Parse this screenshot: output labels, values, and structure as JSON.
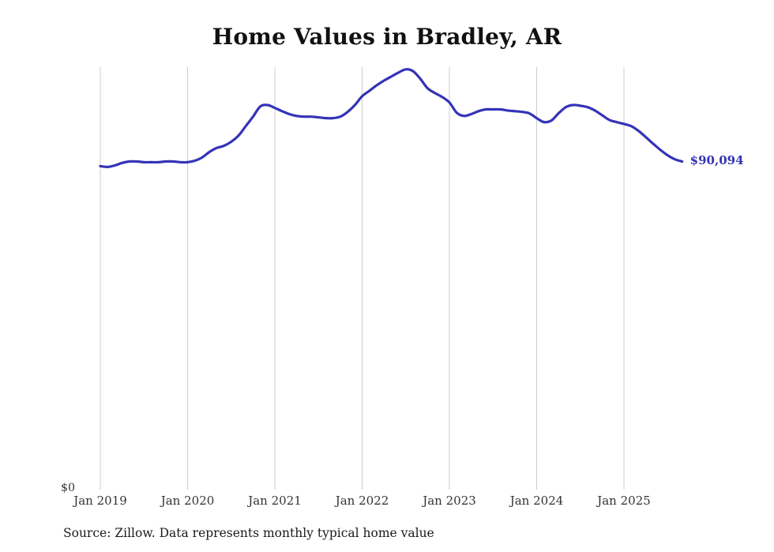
{
  "title": "Home Values in Bradley, AR",
  "colors": {
    "line": "#3533b7",
    "grid": "#cccccc",
    "text": "#333333"
  },
  "y_axis": {
    "zero_label": "$0"
  },
  "end_label": "$90,094",
  "source": "Source: Zillow. Data represents monthly typical home value",
  "chart_data": {
    "type": "line",
    "title": "Home Values in Bradley, AR",
    "ylabel": "",
    "xlabel": "",
    "ylim": [
      0,
      116000
    ],
    "grid": "vertical",
    "legend": "none",
    "annotation": "$90,094",
    "x_tick_labels": [
      "Jan 2019",
      "Jan 2020",
      "Jan 2021",
      "Jan 2022",
      "Jan 2023",
      "Jan 2024",
      "Jan 2025"
    ],
    "x": [
      "2019-01",
      "2019-02",
      "2019-03",
      "2019-04",
      "2019-05",
      "2019-06",
      "2019-07",
      "2019-08",
      "2019-09",
      "2019-10",
      "2019-11",
      "2019-12",
      "2020-01",
      "2020-02",
      "2020-03",
      "2020-04",
      "2020-05",
      "2020-06",
      "2020-07",
      "2020-08",
      "2020-09",
      "2020-10",
      "2020-11",
      "2020-12",
      "2021-01",
      "2021-02",
      "2021-03",
      "2021-04",
      "2021-05",
      "2021-06",
      "2021-07",
      "2021-08",
      "2021-09",
      "2021-10",
      "2021-11",
      "2021-12",
      "2022-01",
      "2022-02",
      "2022-03",
      "2022-04",
      "2022-05",
      "2022-06",
      "2022-07",
      "2022-08",
      "2022-09",
      "2022-10",
      "2022-11",
      "2022-12",
      "2023-01",
      "2023-02",
      "2023-03",
      "2023-04",
      "2023-05",
      "2023-06",
      "2023-07",
      "2023-08",
      "2023-09",
      "2023-10",
      "2023-11",
      "2023-12",
      "2024-01",
      "2024-02",
      "2024-03",
      "2024-04",
      "2024-05",
      "2024-06",
      "2024-07",
      "2024-08",
      "2024-09",
      "2024-10",
      "2024-11",
      "2024-12",
      "2025-01",
      "2025-02",
      "2025-03",
      "2025-04",
      "2025-05",
      "2025-06",
      "2025-07",
      "2025-08",
      "2025-09"
    ],
    "values": [
      88800,
      88600,
      89000,
      89700,
      90100,
      90100,
      89900,
      89900,
      89900,
      90100,
      90100,
      89900,
      89900,
      90300,
      91200,
      92700,
      93800,
      94400,
      95500,
      97200,
      99800,
      102400,
      105200,
      105600,
      104800,
      103900,
      103100,
      102600,
      102400,
      102400,
      102200,
      102000,
      102000,
      102400,
      103700,
      105600,
      108000,
      109500,
      111000,
      112300,
      113400,
      114500,
      115400,
      114900,
      112800,
      110200,
      108900,
      107800,
      106300,
      103500,
      102600,
      103100,
      103900,
      104400,
      104400,
      104400,
      104100,
      103900,
      103700,
      103300,
      102000,
      100900,
      101300,
      103300,
      105000,
      105600,
      105400,
      105000,
      104100,
      102800,
      101500,
      100900,
      100400,
      99800,
      98500,
      96800,
      95000,
      93300,
      91800,
      90700,
      90094
    ]
  }
}
